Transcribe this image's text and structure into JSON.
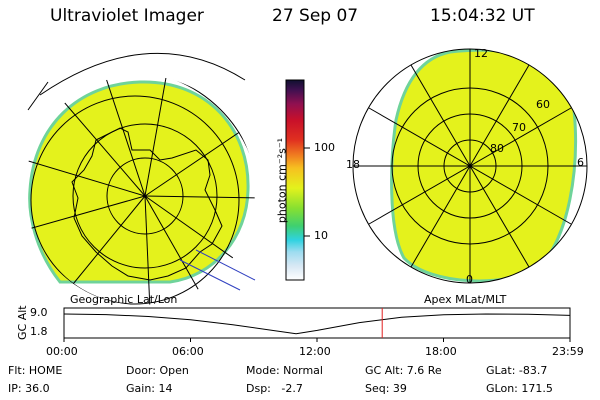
{
  "header": {
    "instrument": "Ultraviolet Imager",
    "date": "27 Sep 07",
    "time": "15:04:32 UT"
  },
  "colorbar": {
    "label": "photon cm⁻²s⁻¹",
    "ticks": [
      "100",
      "10"
    ]
  },
  "left_panel": {
    "caption": "Geographic Lat/Lon"
  },
  "right_panel": {
    "caption": "Apex  MLat/MLT",
    "mlt_labels": [
      "12",
      "18",
      "6",
      "0"
    ],
    "lat_labels": [
      "60",
      "70",
      "80"
    ]
  },
  "timeline": {
    "ylabel": "GC Alt",
    "y_ticks": [
      "9.0",
      "1.8"
    ],
    "time_ticks": [
      "00:00",
      "06:00",
      "12:00",
      "18:00",
      "23:59"
    ],
    "current_marker_hours": 15.08,
    "altitude_curve": [
      {
        "h": 0,
        "alt": 9.0
      },
      {
        "h": 2,
        "alt": 8.8
      },
      {
        "h": 4,
        "alt": 8.1
      },
      {
        "h": 6,
        "alt": 6.9
      },
      {
        "h": 8,
        "alt": 5.1
      },
      {
        "h": 10,
        "alt": 3.0
      },
      {
        "h": 11,
        "alt": 1.9
      },
      {
        "h": 12,
        "alt": 3.1
      },
      {
        "h": 14,
        "alt": 5.9
      },
      {
        "h": 16,
        "alt": 7.8
      },
      {
        "h": 18,
        "alt": 8.7
      },
      {
        "h": 20,
        "alt": 9.0
      },
      {
        "h": 22,
        "alt": 8.9
      },
      {
        "h": 23.98,
        "alt": 8.5
      }
    ]
  },
  "info": {
    "row1": [
      "Flt: HOME",
      "Door: Open",
      "Mode: Normal",
      "GC Alt: 7.6 Re",
      "GLat: -83.7"
    ],
    "row2": [
      "IP: 36.0",
      "Gain: 14",
      "Dsp:   -2.7",
      "Seq: 39",
      "GLon: 171.5"
    ]
  },
  "colors": {
    "aurora_fill": "#e4f21c",
    "aurora_edge": "#6fd39a",
    "marker": "#e02020"
  }
}
